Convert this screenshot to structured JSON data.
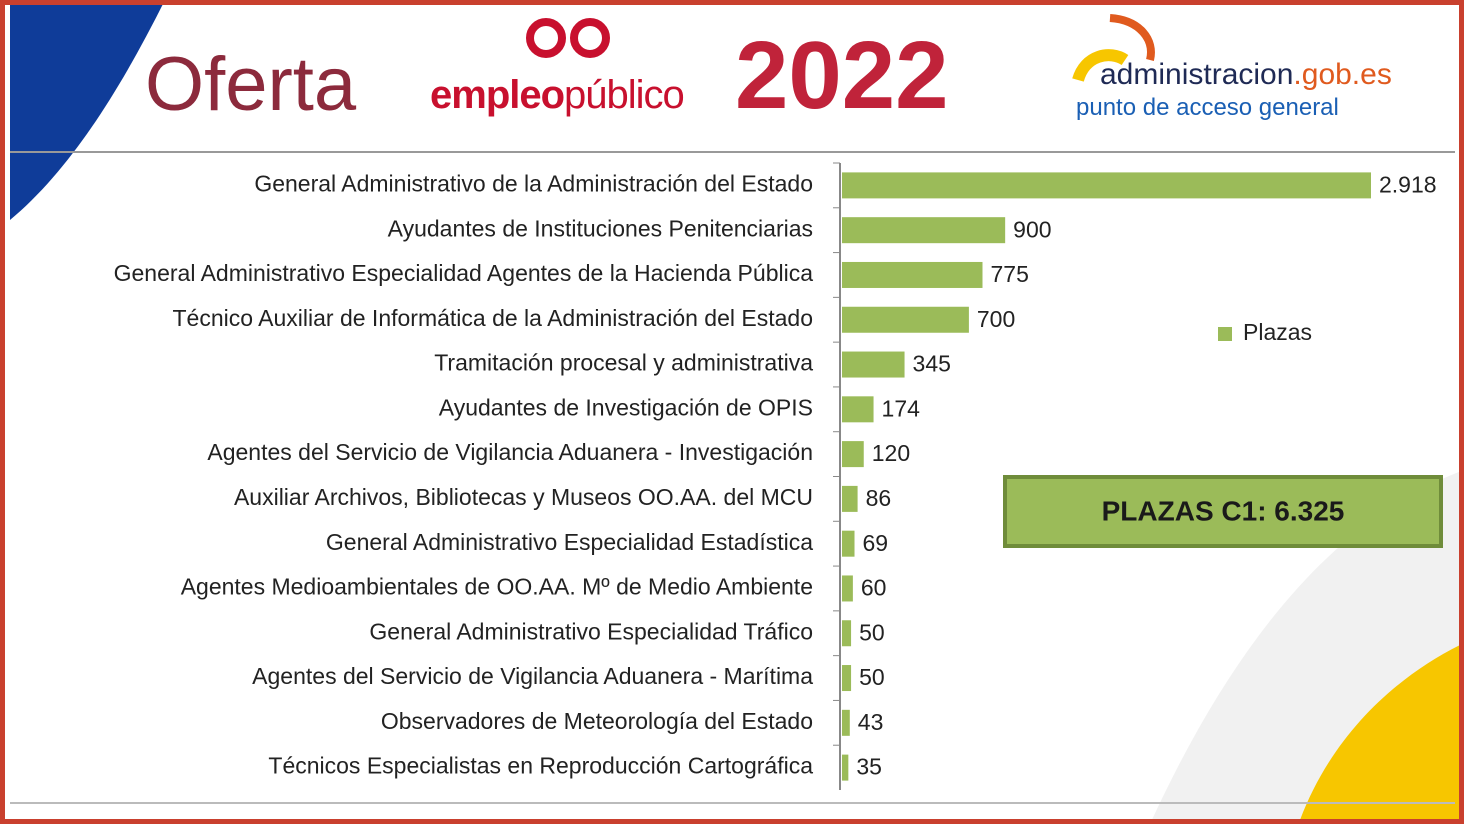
{
  "header": {
    "title": "Oferta",
    "brand_bold": "empleo",
    "brand_light": "público",
    "year": "2022",
    "site_main": "administracion",
    "site_domain": ".gob.es",
    "site_tagline": "punto de acceso general"
  },
  "chart_data": {
    "type": "bar",
    "orientation": "horizontal",
    "categories": [
      "General Administrativo de la Administración del Estado",
      "Ayudantes de  Instituciones Penitenciarias",
      "General Administrativo Especialidad Agentes de la Hacienda Pública",
      "Técnico Auxiliar de Informática de la Administración del Estado",
      "Tramitación procesal y administrativa",
      "Ayudantes de Investigación de OPIS",
      "Agentes del Servicio de Vigilancia Aduanera - Investigación",
      "Auxiliar Archivos, Bibliotecas y Museos OO.AA. del MCU",
      "General Administrativo Especialidad Estadística",
      "Agentes Medioambientales de OO.AA. Mº de Medio Ambiente",
      "General Administrativo Especialidad Tráfico",
      "Agentes del Servicio de Vigilancia Aduanera - Marítima",
      "Observadores de Meteorología del Estado",
      "Técnicos Especialistas en Reproducción Cartográfica"
    ],
    "series": [
      {
        "name": "Plazas",
        "color": "#9bbb59",
        "values": [
          2918,
          900,
          775,
          700,
          345,
          174,
          120,
          86,
          69,
          60,
          50,
          50,
          43,
          35
        ],
        "value_labels": [
          "2.918",
          "900",
          "775",
          "700",
          "345",
          "174",
          "120",
          "86",
          "69",
          "60",
          "50",
          "50",
          "43",
          "35"
        ]
      }
    ],
    "legend": "right",
    "annotation": "PLAZAS C1: 6.325"
  }
}
